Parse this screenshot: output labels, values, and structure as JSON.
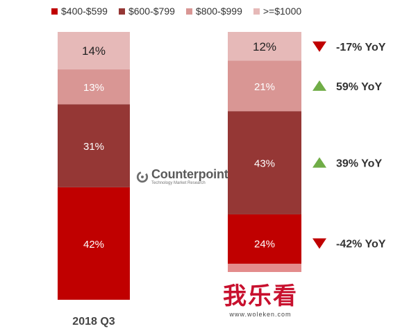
{
  "legend": [
    {
      "label": "$400-$599",
      "color": "#c00000"
    },
    {
      "label": "$600-$799",
      "color": "#953735"
    },
    {
      "label": "$800-$999",
      "color": "#d99694"
    },
    {
      "label": ">=$1000",
      "color": "#e6b9b8"
    }
  ],
  "logo": {
    "name": "Counterpoint",
    "tagline": "Technology Market Research"
  },
  "watermark": {
    "text": "我乐看",
    "url": "www.woleken.com"
  },
  "chart_data": {
    "type": "bar",
    "stacked": true,
    "normalized": true,
    "categories": [
      "2018 Q3",
      ""
    ],
    "series": [
      {
        "name": "$400-$599",
        "color": "#c00000",
        "values": [
          42,
          24
        ],
        "labels": [
          "42%",
          "24%"
        ]
      },
      {
        "name": "$600-$799",
        "color": "#953735",
        "values": [
          31,
          43
        ],
        "labels": [
          "31%",
          "43%"
        ]
      },
      {
        "name": "$800-$999",
        "color": "#d99694",
        "values": [
          13,
          21
        ],
        "labels": [
          "13%",
          "21%"
        ]
      },
      {
        "name": ">=$1000",
        "color": "#e6b9b8",
        "values": [
          14,
          12
        ],
        "labels": [
          "14%",
          "12%"
        ]
      }
    ],
    "yoy_annotations": [
      {
        "series": ">=$1000",
        "direction": "down",
        "text": "-17% YoY"
      },
      {
        "series": "$800-$999",
        "direction": "up",
        "text": "59% YoY"
      },
      {
        "series": "$600-$799",
        "direction": "up",
        "text": "39% YoY"
      },
      {
        "series": "$400-$599",
        "direction": "down",
        "text": "-42% YoY"
      }
    ],
    "ylim": [
      0,
      100
    ],
    "grid": false,
    "legend_position": "top"
  }
}
